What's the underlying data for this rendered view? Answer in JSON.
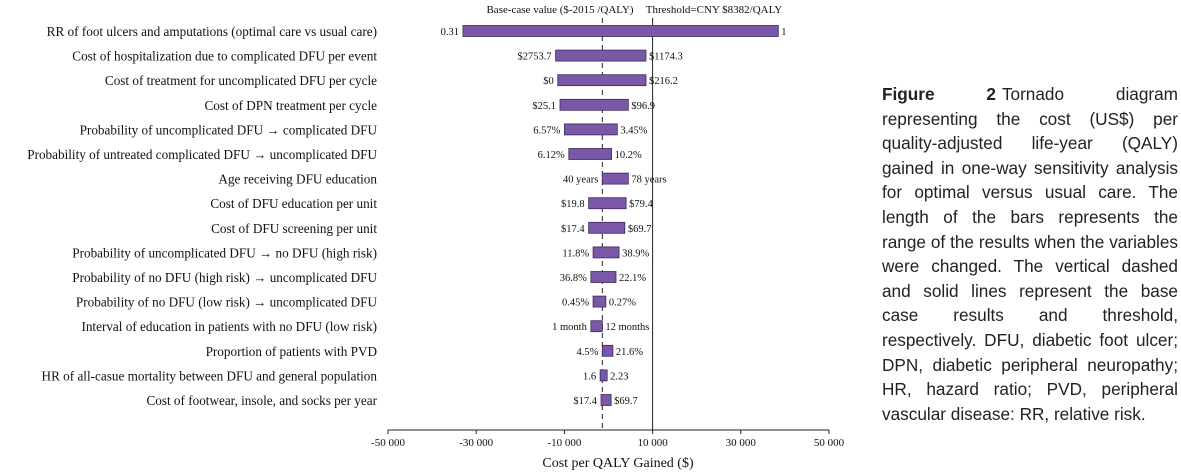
{
  "chart_data": {
    "type": "bar",
    "orientation": "horizontal",
    "subtype": "tornado",
    "xlabel": "Cost per QALY Gained ($)",
    "xlim": [
      -50000,
      50000
    ],
    "xticks": [
      -50000,
      -30000,
      -10000,
      10000,
      30000,
      50000
    ],
    "xtick_labels": [
      "-50 000",
      "-30 000",
      "-10 000",
      "10 000",
      "30 000",
      "50 000"
    ],
    "base_case_value": -1400,
    "base_case_label": "Base-case value ($-2015 /QALY)",
    "threshold_value": 10000,
    "threshold_label": "Threshold=CNY $8382/QALY",
    "bar_color": "#7a58a8",
    "variables": [
      {
        "label": "RR of foot ulcers and amputations (optimal care vs usual care)",
        "low": -33000,
        "high": 38500,
        "low_label": "0.31",
        "high_label": "1"
      },
      {
        "label": "Cost of hospitalization due to complicated DFU per event",
        "low": -12000,
        "high": 8500,
        "low_label": "$2753.7",
        "high_label": "$1174.3"
      },
      {
        "label": "Cost of treatment for uncomplicated DFU per cycle",
        "low": -11500,
        "high": 8500,
        "low_label": "$0",
        "high_label": "$216.2"
      },
      {
        "label": "Cost of DPN treatment per cycle",
        "low": -11000,
        "high": 4500,
        "low_label": "$25.1",
        "high_label": "$96.9"
      },
      {
        "label": "Probability of uncomplicated DFU → complicated DFU",
        "low": -10000,
        "high": 2000,
        "low_label": "6.57%",
        "high_label": "3.45%"
      },
      {
        "label": "Probability of untreated complicated DFU → uncomplicated DFU",
        "low": -9000,
        "high": 700,
        "low_label": "6.12%",
        "high_label": "10.2%"
      },
      {
        "label": "Age receiving DFU education",
        "low": -1400,
        "high": 4500,
        "low_label": "40 years",
        "high_label": "78 years"
      },
      {
        "label": "Cost of DFU education  per unit",
        "low": -4500,
        "high": 4000,
        "low_label": "$19.8",
        "high_label": "$79.4"
      },
      {
        "label": "Cost of DFU screening per unit",
        "low": -4500,
        "high": 3700,
        "low_label": "$17.4",
        "high_label": "$69.7"
      },
      {
        "label": "Probability of uncomplicated DFU → no DFU (high risk)",
        "low": -3500,
        "high": 2400,
        "low_label": "11.8%",
        "high_label": "38.9%"
      },
      {
        "label": "Probability of no DFU (high risk)  → uncomplicated DFU",
        "low": -4000,
        "high": 1700,
        "low_label": "36.8%",
        "high_label": "22.1%"
      },
      {
        "label": "Probability of no DFU (low risk) → uncomplicated DFU",
        "low": -3500,
        "high": -600,
        "low_label": "0.45%",
        "high_label": "0.27%"
      },
      {
        "label": "Interval of education in patients with no DFU (low risk)",
        "low": -4000,
        "high": -1400,
        "low_label": "1 month",
        "high_label": "12 months"
      },
      {
        "label": "Proportion of patients with PVD",
        "low": -1400,
        "high": 1000,
        "low_label": "4.5%",
        "high_label": "21.6%"
      },
      {
        "label": "HR of all-casue mortality between DFU and general population",
        "low": -1900,
        "high": -300,
        "low_label": "1.6",
        "high_label": "2.23"
      },
      {
        "label": "Cost of footwear, insole, and socks per year",
        "low": -1700,
        "high": 600,
        "low_label": "$17.4",
        "high_label": "$69.7"
      }
    ]
  },
  "caption": {
    "label": "Figure 2",
    "text": "Tornado diagram representing the cost (US$) per quality-adjusted life-year (QALY) gained in one-way sensitivity analysis for optimal versus usual care. The length of the bars represents the range of the results when the variables were changed. The vertical dashed and solid lines represent the base case results and threshold, respectively. DFU, diabetic foot ulcer; DPN, diabetic peripheral neuropathy; HR, hazard ratio; PVD, peripheral vascular disease: RR, relative risk."
  }
}
